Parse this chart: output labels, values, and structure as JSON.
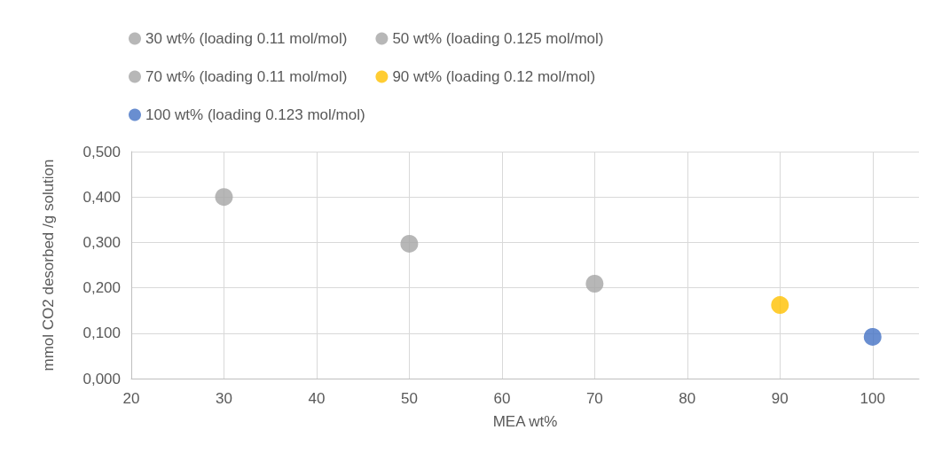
{
  "chart_data": {
    "type": "scatter",
    "xlabel": "MEA wt%",
    "ylabel": "mmol CO2 desorbed /g solution",
    "series": [
      {
        "name": "30 wt% (loading 0.11 mol/mol)",
        "color": "#a5a5a5",
        "x": [
          30
        ],
        "values": [
          0.4
        ]
      },
      {
        "name": "50 wt% (loading 0.125 mol/mol)",
        "color": "#a5a5a5",
        "x": [
          50
        ],
        "values": [
          0.297
        ]
      },
      {
        "name": "70 wt% (loading 0.11 mol/mol)",
        "color": "#a5a5a5",
        "x": [
          70
        ],
        "values": [
          0.209
        ]
      },
      {
        "name": "90 wt% (loading 0.12 mol/mol)",
        "color": "#ffc000",
        "x": [
          90
        ],
        "values": [
          0.162
        ]
      },
      {
        "name": "100 wt% (loading 0.123 mol/mol)",
        "color": "#4472c4",
        "x": [
          100
        ],
        "values": [
          0.092
        ]
      }
    ],
    "xlim": [
      20,
      105
    ],
    "xticks": [
      20,
      30,
      40,
      50,
      60,
      70,
      80,
      90,
      100
    ],
    "ylim": [
      0,
      0.5
    ],
    "yticks": [
      {
        "value": 0,
        "label": "0,000"
      },
      {
        "value": 0.1,
        "label": "0,100"
      },
      {
        "value": 0.2,
        "label": "0,200"
      },
      {
        "value": 0.3,
        "label": "0,300"
      },
      {
        "value": 0.4,
        "label": "0,400"
      },
      {
        "value": 0.5,
        "label": "0,500"
      }
    ],
    "grid": true,
    "legend": "top",
    "marker": "circle"
  }
}
